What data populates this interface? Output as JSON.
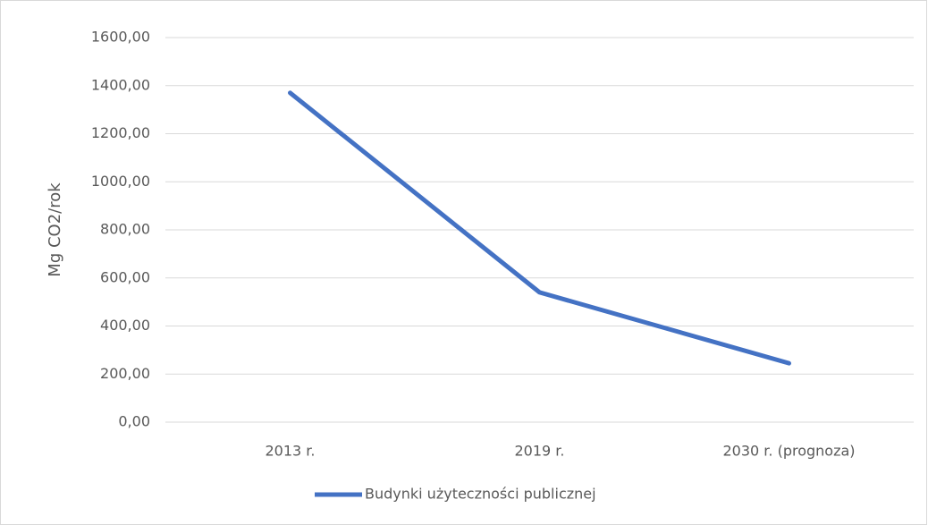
{
  "chart_data": {
    "type": "line",
    "y_label": "Mg CO2/rok",
    "categories": [
      "2013 r.",
      "2019 r.",
      "2030 r. (prognoza)"
    ],
    "series": [
      {
        "name": "Budynki użyteczności publicznej",
        "color": "#4472c4",
        "values": [
          1370,
          540,
          245
        ]
      }
    ],
    "ylim": [
      0,
      1600
    ],
    "yticks": [
      {
        "value": 0,
        "label": "0,00"
      },
      {
        "value": 200,
        "label": "200,00"
      },
      {
        "value": 400,
        "label": "400,00"
      },
      {
        "value": 600,
        "label": "600,00"
      },
      {
        "value": 800,
        "label": "800,00"
      },
      {
        "value": 1000,
        "label": "1000,00"
      },
      {
        "value": 1200,
        "label": "1200,00"
      },
      {
        "value": 1400,
        "label": "1400,00"
      },
      {
        "value": 1600,
        "label": "1600,00"
      }
    ],
    "grid": true,
    "legend": "bottom"
  }
}
